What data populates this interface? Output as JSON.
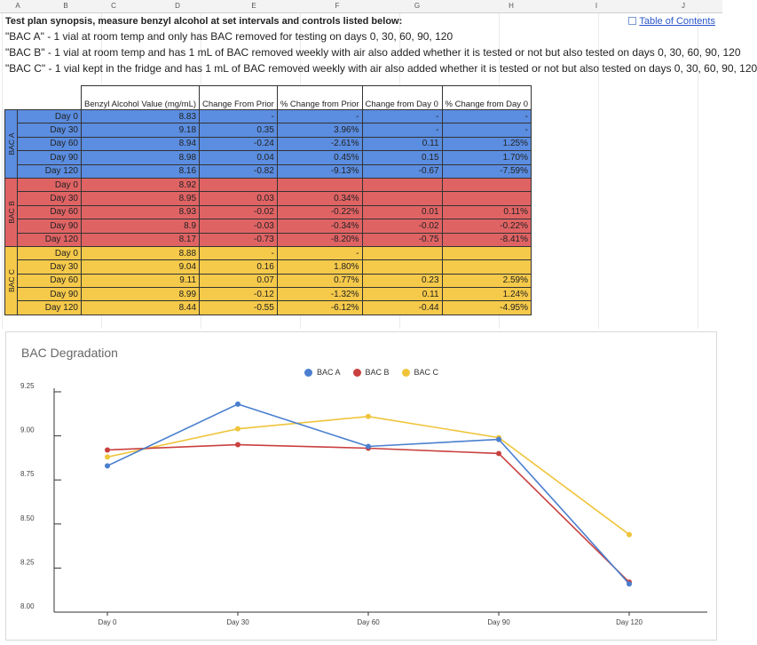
{
  "columns": [
    "A",
    "B",
    "C",
    "D",
    "E",
    "F",
    "G",
    "H",
    "I",
    "J"
  ],
  "synopsis": {
    "title": "Test plan synopsis, measure benzyl alcohol at set intervals and controls listed below:",
    "lines": [
      "\"BAC A\" - 1 vial at room temp and only has BAC removed for testing on days 0, 30, 60, 90, 120",
      "\"BAC B\" - 1 vial at room temp and has 1 mL of BAC removed weekly with air also added whether it is tested or not but also tested on days 0, 30, 60, 90, 120",
      "\"BAC C\" - 1 vial kept in the fridge and has 1 mL of BAC removed weekly with air also added whether it is tested or not but also tested on days 0, 30, 60, 90, 120"
    ],
    "toc_link": "Table of Contents"
  },
  "table": {
    "headers": [
      "Benzyl Alcohol Value (mg/mL)",
      "Change From Prior",
      "% Change from Prior",
      "Change from Day 0",
      "% Change from Day 0"
    ],
    "groups": [
      {
        "label": "BAC A",
        "color": "#5b8de0",
        "rows": [
          [
            "Day 0",
            "8.83",
            "-",
            "-",
            "-",
            "-"
          ],
          [
            "Day 30",
            "9.18",
            "0.35",
            "3.96%",
            "-",
            "-"
          ],
          [
            "Day 60",
            "8.94",
            "-0.24",
            "-2.61%",
            "0.11",
            "1.25%"
          ],
          [
            "Day 90",
            "8.98",
            "0.04",
            "0.45%",
            "0.15",
            "1.70%"
          ],
          [
            "Day 120",
            "8.16",
            "-0.82",
            "-9.13%",
            "-0.67",
            "-7.59%"
          ]
        ]
      },
      {
        "label": "BAC B",
        "color": "#e06364",
        "rows": [
          [
            "Day 0",
            "8.92",
            "",
            "",
            "",
            ""
          ],
          [
            "Day 30",
            "8.95",
            "0.03",
            "0.34%",
            "",
            ""
          ],
          [
            "Day 60",
            "8.93",
            "-0.02",
            "-0.22%",
            "0.01",
            "0.11%"
          ],
          [
            "Day 90",
            "8.9",
            "-0.03",
            "-0.34%",
            "-0.02",
            "-0.22%"
          ],
          [
            "Day 120",
            "8.17",
            "-0.73",
            "-8.20%",
            "-0.75",
            "-8.41%"
          ]
        ]
      },
      {
        "label": "BAC C",
        "color": "#f5c94a",
        "rows": [
          [
            "Day 0",
            "8.88",
            "-",
            "-",
            "",
            ""
          ],
          [
            "Day 30",
            "9.04",
            "0.16",
            "1.80%",
            "",
            ""
          ],
          [
            "Day 60",
            "9.11",
            "0.07",
            "0.77%",
            "0.23",
            "2.59%"
          ],
          [
            "Day 90",
            "8.99",
            "-0.12",
            "-1.32%",
            "0.11",
            "1.24%"
          ],
          [
            "Day 120",
            "8.44",
            "-0.55",
            "-6.12%",
            "-0.44",
            "-4.95%"
          ]
        ]
      }
    ]
  },
  "chart_data": {
    "type": "line",
    "title": "BAC Degradation",
    "categories": [
      "Day 0",
      "Day 30",
      "Day 60",
      "Day 90",
      "Day 120"
    ],
    "series": [
      {
        "name": "BAC A",
        "color": "#4a7fcf",
        "values": [
          8.83,
          9.18,
          8.94,
          8.98,
          8.16
        ]
      },
      {
        "name": "BAC B",
        "color": "#c9403f",
        "values": [
          8.92,
          8.95,
          8.93,
          8.9,
          8.17
        ]
      },
      {
        "name": "BAC C",
        "color": "#efc43a",
        "values": [
          8.88,
          9.04,
          9.11,
          8.99,
          8.44
        ]
      }
    ],
    "yticks": [
      "9.25",
      "9.00",
      "8.75",
      "8.50",
      "8.25",
      "8.00"
    ],
    "ylim": [
      8.0,
      9.25
    ],
    "xlabel": "",
    "ylabel": "",
    "legend_position": "top-center",
    "grid": false
  }
}
